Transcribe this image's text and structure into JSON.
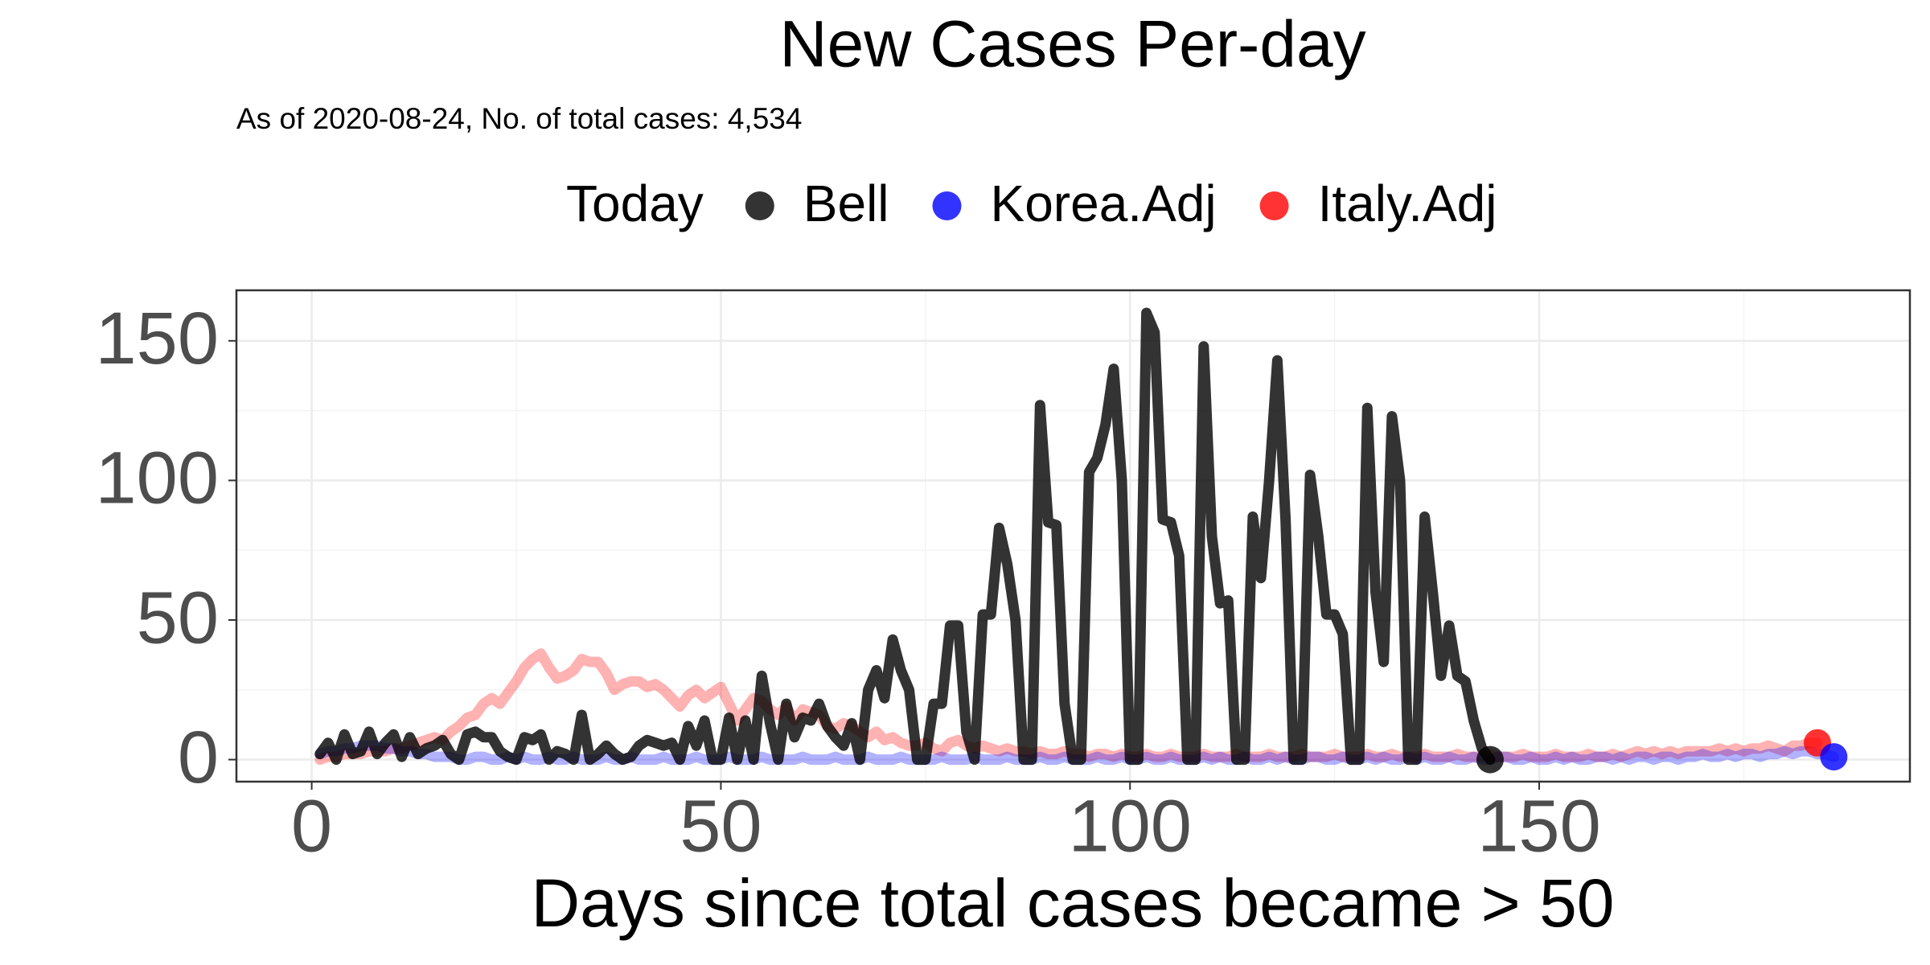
{
  "chart_data": {
    "type": "line",
    "title": "New Cases Per-day",
    "subtitle": "As of 2020-08-24, No. of total cases: 4,534",
    "legend_title": "Today",
    "legend_position": "top",
    "x_label": "Days since total cases became > 50",
    "xlim": [
      -9.2,
      195.3
    ],
    "ylim": [
      -7.9,
      168.1
    ],
    "xticks": [
      0,
      50,
      100,
      150
    ],
    "yticks": [
      0,
      50,
      100,
      150
    ],
    "xminor": [
      25,
      75,
      125,
      175
    ],
    "yminor": [
      25,
      75,
      125
    ],
    "grid": true,
    "x": [
      1,
      2,
      3,
      4,
      5,
      6,
      7,
      8,
      9,
      10,
      11,
      12,
      13,
      14,
      15,
      16,
      17,
      18,
      19,
      20,
      21,
      22,
      23,
      24,
      25,
      26,
      27,
      28,
      29,
      30,
      31,
      32,
      33,
      34,
      35,
      36,
      37,
      38,
      39,
      40,
      41,
      42,
      43,
      44,
      45,
      46,
      47,
      48,
      49,
      50,
      51,
      52,
      53,
      54,
      55,
      56,
      57,
      58,
      59,
      60,
      61,
      62,
      63,
      64,
      65,
      66,
      67,
      68,
      69,
      70,
      71,
      72,
      73,
      74,
      75,
      76,
      77,
      78,
      79,
      80,
      81,
      82,
      83,
      84,
      85,
      86,
      87,
      88,
      89,
      90,
      91,
      92,
      93,
      94,
      95,
      96,
      97,
      98,
      99,
      100,
      101,
      102,
      103,
      104,
      105,
      106,
      107,
      108,
      109,
      110,
      111,
      112,
      113,
      114,
      115,
      116,
      117,
      118,
      119,
      120,
      121,
      122,
      123,
      124,
      125,
      126,
      127,
      128,
      129,
      130,
      131,
      132,
      133,
      134,
      135,
      136,
      137,
      138,
      139,
      140,
      141,
      142,
      143,
      144,
      145,
      146,
      147,
      148,
      149,
      150,
      151,
      152,
      153,
      154,
      155,
      156,
      157,
      158,
      159,
      160,
      161,
      162,
      163,
      164,
      165,
      166,
      167,
      168,
      169,
      170,
      171,
      172,
      173,
      174,
      175,
      176,
      177,
      178,
      179,
      180,
      181,
      182,
      183,
      184,
      185,
      186
    ],
    "series": [
      {
        "name": "Italy.Adj",
        "color": "#ff0000",
        "values": [
          0,
          1,
          1,
          2,
          2,
          2,
          3,
          3,
          3,
          4,
          4,
          5,
          6,
          7,
          8,
          7,
          10,
          12,
          15,
          16,
          20,
          22,
          20,
          24,
          28,
          33,
          36,
          38,
          33,
          29,
          30,
          32,
          36,
          35,
          35,
          31,
          25,
          27,
          28,
          28,
          26,
          27,
          25,
          22,
          19,
          23,
          25,
          22,
          24,
          26,
          20,
          14,
          18,
          22,
          21,
          18,
          16,
          19,
          14,
          18,
          17,
          16,
          12,
          11,
          13,
          12,
          10,
          8,
          10,
          7,
          8,
          6,
          5,
          5,
          6,
          4,
          3,
          6,
          7,
          5,
          4,
          5,
          4,
          3,
          4,
          3,
          3,
          2,
          3,
          2,
          2,
          3,
          2,
          2,
          1,
          2,
          2,
          1,
          2,
          1,
          1,
          2,
          1,
          1,
          2,
          1,
          1,
          1,
          2,
          1,
          1,
          1,
          2,
          1,
          1,
          1,
          2,
          1,
          1,
          1,
          2,
          1,
          1,
          1,
          2,
          1,
          1,
          1,
          2,
          1,
          1,
          2,
          1,
          1,
          1,
          2,
          1,
          1,
          1,
          2,
          1,
          1,
          1,
          2,
          1,
          1,
          1,
          2,
          1,
          1,
          1,
          2,
          1,
          1,
          1,
          2,
          1,
          1,
          2,
          1,
          2,
          3,
          2,
          3,
          2,
          3,
          2,
          3,
          3,
          3,
          3,
          4,
          3,
          4,
          3,
          4,
          4,
          5,
          4,
          3,
          5,
          5,
          6,
          6,
          null,
          null
        ]
      },
      {
        "name": "Korea.Adj",
        "color": "#0000ff",
        "values": [
          2,
          3,
          3,
          4,
          4,
          5,
          5,
          5,
          4,
          4,
          3,
          3,
          2,
          2,
          1,
          1,
          1,
          0,
          0,
          1,
          1,
          0,
          0,
          1,
          0,
          1,
          0,
          0,
          1,
          0,
          0,
          1,
          0,
          0,
          0,
          1,
          0,
          0,
          1,
          0,
          0,
          0,
          1,
          0,
          0,
          0,
          1,
          0,
          0,
          0,
          1,
          0,
          0,
          0,
          1,
          0,
          0,
          0,
          0,
          1,
          0,
          0,
          0,
          1,
          0,
          0,
          0,
          1,
          0,
          0,
          0,
          1,
          0,
          0,
          0,
          0,
          1,
          0,
          0,
          0,
          1,
          0,
          0,
          0,
          1,
          0,
          0,
          0,
          1,
          0,
          0,
          1,
          0,
          0,
          0,
          1,
          0,
          0,
          1,
          0,
          0,
          1,
          0,
          0,
          1,
          0,
          0,
          0,
          1,
          0,
          1,
          0,
          0,
          1,
          0,
          0,
          1,
          0,
          1,
          0,
          0,
          1,
          1,
          0,
          0,
          1,
          0,
          0,
          1,
          0,
          1,
          0,
          0,
          1,
          0,
          1,
          0,
          0,
          1,
          0,
          0,
          1,
          0,
          0,
          1,
          1,
          0,
          0,
          1,
          0,
          0,
          1,
          0,
          1,
          0,
          0,
          1,
          1,
          0,
          1,
          0,
          1,
          1,
          0,
          1,
          1,
          0,
          1,
          1,
          2,
          1,
          1,
          2,
          1,
          2,
          2,
          1,
          2,
          2,
          3,
          2,
          3,
          3,
          2,
          2,
          1
        ]
      },
      {
        "name": "Bell",
        "color": "#000000",
        "values": [
          2,
          6,
          0,
          9,
          2,
          3,
          10,
          2,
          6,
          9,
          1,
          8,
          2,
          4,
          5,
          7,
          2,
          0,
          9,
          10,
          8,
          8,
          3,
          1,
          0,
          8,
          7,
          9,
          0,
          3,
          2,
          0,
          16,
          0,
          2,
          5,
          2,
          0,
          1,
          5,
          7,
          6,
          5,
          6,
          0,
          12,
          5,
          14,
          0,
          0,
          15,
          0,
          14,
          0,
          30,
          13,
          0,
          20,
          8,
          15,
          14,
          20,
          12,
          8,
          5,
          13,
          0,
          25,
          32,
          22,
          43,
          32,
          25,
          0,
          0,
          20,
          20,
          48,
          48,
          10,
          0,
          52,
          52,
          83,
          70,
          50,
          0,
          0,
          127,
          85,
          84,
          20,
          0,
          0,
          103,
          108,
          120,
          140,
          100,
          0,
          0,
          160,
          153,
          86,
          85,
          73,
          0,
          0,
          148,
          80,
          56,
          57,
          0,
          0,
          87,
          65,
          100,
          143,
          86,
          0,
          0,
          102,
          80,
          52,
          52,
          45,
          0,
          0,
          126,
          60,
          35,
          123,
          100,
          0,
          0,
          87,
          60,
          30,
          48,
          30,
          28,
          14,
          4,
          0,
          null,
          null,
          null,
          null,
          null,
          null,
          null,
          null,
          null,
          null,
          null,
          null,
          null,
          null,
          null,
          null,
          null,
          null,
          null,
          null,
          null,
          null,
          null,
          null,
          null,
          null,
          null,
          null,
          null,
          null,
          null,
          null,
          null,
          null,
          null,
          null,
          null,
          null,
          null,
          null,
          null,
          null
        ]
      }
    ]
  }
}
